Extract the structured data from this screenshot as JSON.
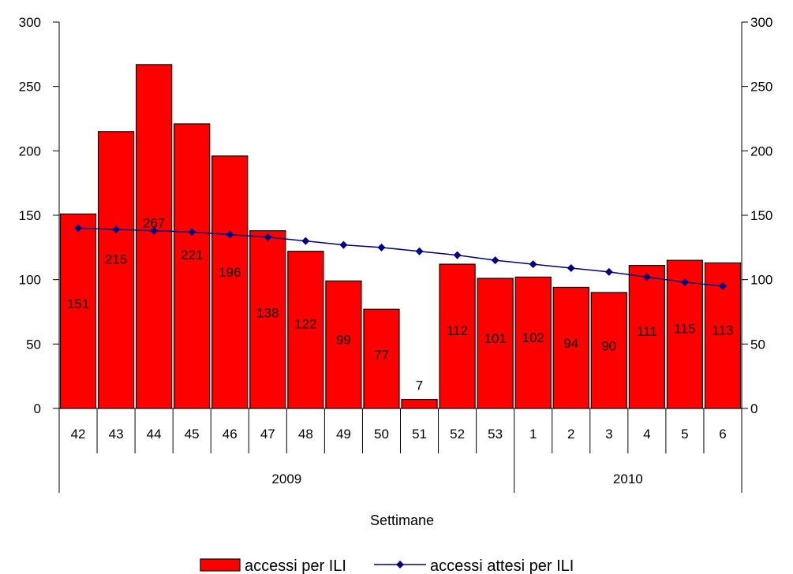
{
  "chart_data": {
    "type": "bar",
    "categories": [
      "42",
      "43",
      "44",
      "45",
      "46",
      "47",
      "48",
      "49",
      "50",
      "51",
      "52",
      "53",
      "1",
      "2",
      "3",
      "4",
      "5",
      "6"
    ],
    "groups": [
      {
        "label": "2009",
        "count": 12
      },
      {
        "label": "2010",
        "count": 6
      }
    ],
    "xlabel": "Settimane",
    "ylabel": "",
    "ylim": [
      0,
      300
    ],
    "yticks": [
      0,
      50,
      100,
      150,
      200,
      250,
      300
    ],
    "grid": false,
    "legend_position": "bottom",
    "series": [
      {
        "name": "accessi per ILI",
        "type": "bar",
        "color": "#ff0000",
        "values": [
          151,
          215,
          267,
          221,
          196,
          138,
          122,
          99,
          77,
          7,
          112,
          101,
          102,
          94,
          90,
          111,
          115,
          113
        ]
      },
      {
        "name": "accessi attesi per ILI",
        "type": "line",
        "color": "#000080",
        "values": [
          140,
          139,
          138,
          137,
          135,
          133,
          130,
          127,
          125,
          122,
          119,
          115,
          112,
          109,
          106,
          102,
          98,
          95
        ]
      }
    ]
  }
}
